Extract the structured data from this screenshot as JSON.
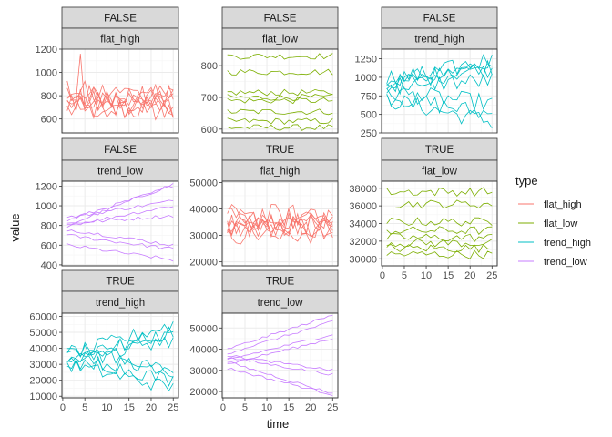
{
  "chart_data": {
    "type": "line",
    "xlabel": "time",
    "ylabel": "value",
    "x_ticks": [
      0,
      5,
      10,
      15,
      20,
      25
    ],
    "x_range": [
      1,
      25
    ],
    "grid": true,
    "legend": {
      "title": "type",
      "position": "right",
      "entries": [
        {
          "name": "flat_high",
          "color": "#F8766D"
        },
        {
          "name": "flat_low",
          "color": "#7CAE00"
        },
        {
          "name": "trend_high",
          "color": "#00BFC4"
        },
        {
          "name": "trend_low",
          "color": "#C77CFF"
        }
      ]
    },
    "panels": [
      {
        "facet_top": "FALSE",
        "facet_bottom": "flat_high",
        "type": "flat_high",
        "y_ticks": [
          600,
          800,
          1000,
          1200
        ],
        "y_range": [
          480,
          1200
        ],
        "series_centers": [
          680,
          700,
          720,
          740,
          760,
          780,
          800,
          820
        ],
        "noise": 110,
        "spike": {
          "x": 4,
          "y": 1160
        }
      },
      {
        "facet_top": "FALSE",
        "facet_bottom": "flat_low",
        "type": "flat_low",
        "y_ticks": [
          600,
          700,
          800
        ],
        "y_range": [
          588,
          852
        ],
        "series_centers": [
          605,
          625,
          655,
          690,
          700,
          715,
          780,
          830
        ],
        "noise": 10
      },
      {
        "facet_top": "FALSE",
        "facet_bottom": "trend_high",
        "type": "trend_high",
        "y_ticks": [
          250,
          500,
          750,
          1000,
          1250
        ],
        "y_range": [
          250,
          1380
        ],
        "series": [
          [
            700,
            400
          ],
          [
            900,
            1250
          ],
          [
            1000,
            1100
          ],
          [
            900,
            1150
          ],
          [
            750,
            500
          ],
          [
            900,
            950
          ],
          [
            850,
            1200
          ],
          [
            800,
            650
          ]
        ],
        "noise": 120
      },
      {
        "facet_top": "FALSE",
        "facet_bottom": "trend_low",
        "type": "trend_low",
        "y_ticks": [
          400,
          600,
          800,
          1000,
          1200
        ],
        "y_range": [
          390,
          1250
        ],
        "series": [
          [
            600,
            450
          ],
          [
            700,
            560
          ],
          [
            800,
            1220
          ],
          [
            850,
            1200
          ],
          [
            800,
            1000
          ],
          [
            820,
            900
          ],
          [
            880,
            1050
          ],
          [
            760,
            600
          ]
        ],
        "noise": 18
      },
      {
        "facet_top": "TRUE",
        "facet_bottom": "flat_high",
        "type": "flat_high",
        "y_ticks": [
          20000,
          30000,
          40000,
          50000
        ],
        "y_range": [
          18500,
          50500
        ],
        "series_centers": [
          31000,
          32500,
          34000,
          35000,
          36000,
          37500,
          33500,
          34500
        ],
        "noise": 4500
      },
      {
        "facet_top": "TRUE",
        "facet_bottom": "flat_low",
        "type": "flat_low",
        "y_ticks": [
          30000,
          32000,
          34000,
          36000,
          38000
        ],
        "y_range": [
          29200,
          38800
        ],
        "series_centers": [
          30500,
          31200,
          31800,
          32400,
          33200,
          34200,
          36200,
          37600
        ],
        "noise": 500
      },
      {
        "facet_top": "TRUE",
        "facet_bottom": "trend_high",
        "type": "trend_high",
        "y_ticks": [
          10000,
          20000,
          30000,
          40000,
          50000,
          60000
        ],
        "y_range": [
          9000,
          62000
        ],
        "series": [
          [
            30000,
            15000
          ],
          [
            35000,
            20000
          ],
          [
            32000,
            28000
          ],
          [
            40000,
            25000
          ],
          [
            36000,
            55000
          ],
          [
            33000,
            50000
          ],
          [
            38000,
            45000
          ],
          [
            30000,
            48000
          ]
        ],
        "noise": 4500
      },
      {
        "facet_top": "TRUE",
        "facet_bottom": "trend_low",
        "type": "trend_low",
        "y_ticks": [
          20000,
          30000,
          40000,
          50000
        ],
        "y_range": [
          17000,
          57000
        ],
        "series": [
          [
            40000,
            56000
          ],
          [
            38000,
            53000
          ],
          [
            35000,
            47000
          ],
          [
            33000,
            45000
          ],
          [
            36000,
            28000
          ],
          [
            34000,
            19000
          ],
          [
            31000,
            18500
          ],
          [
            37000,
            30000
          ]
        ],
        "noise": 600
      }
    ]
  }
}
